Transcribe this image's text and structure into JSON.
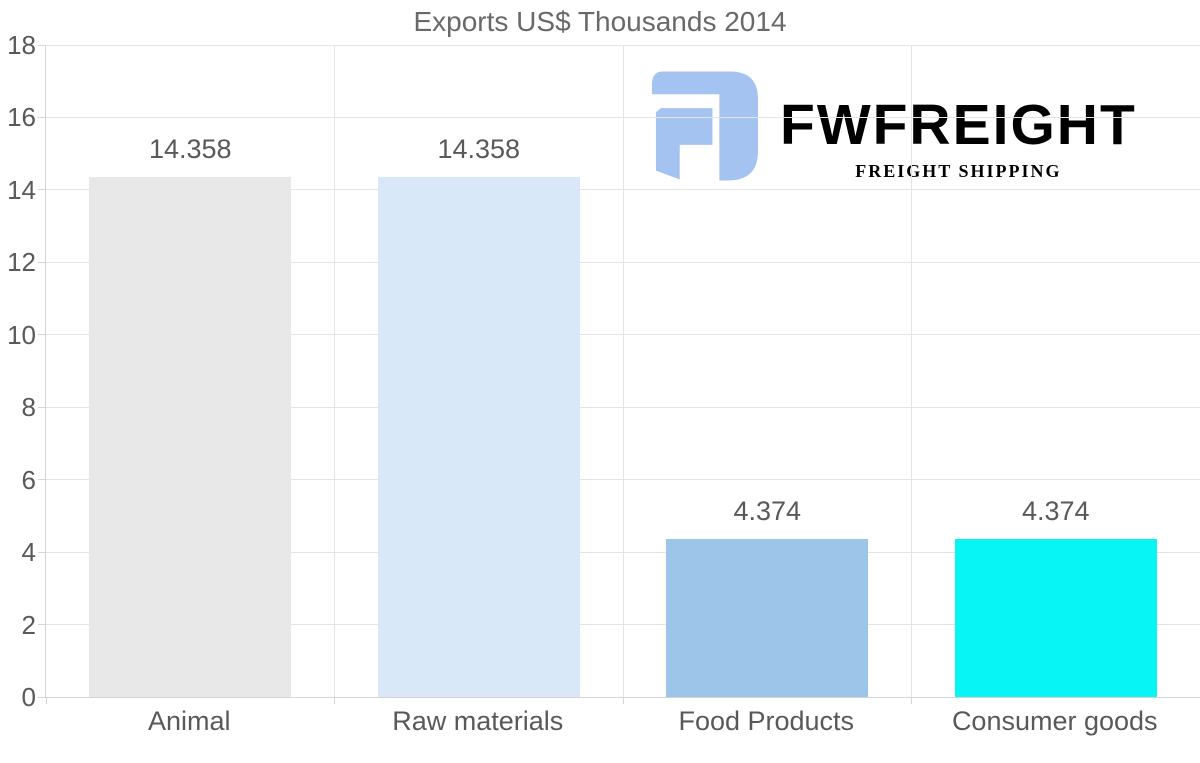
{
  "logo": {
    "name": "FWFREIGHT",
    "tagline": "FREIGHT SHIPPING",
    "color_primary": "#a5c3f0",
    "color_tagline": "#b5cef3"
  },
  "chart_data": {
    "type": "bar",
    "title": "Exports US$ Thousands 2014",
    "categories": [
      "Animal",
      "Raw materials",
      "Food Products",
      "Consumer goods"
    ],
    "values": [
      14.358,
      14.358,
      4.374,
      4.374
    ],
    "value_labels": [
      "14.358",
      "14.358",
      "4.374",
      "4.374"
    ],
    "bar_colors": [
      "#e8e8e8",
      "#d9e8f9",
      "#9cc5e9",
      "#07f5f5"
    ],
    "ylim": [
      0,
      18
    ],
    "yticks": [
      0,
      2,
      4,
      6,
      8,
      10,
      12,
      14,
      16,
      18
    ],
    "xlabel": "",
    "ylabel": "",
    "grid": true,
    "legend": false,
    "colors": {
      "gridline": "#e4e4e4",
      "axis": "#d4d4d4",
      "tick_text": "#595959",
      "title_text": "#696969"
    }
  }
}
